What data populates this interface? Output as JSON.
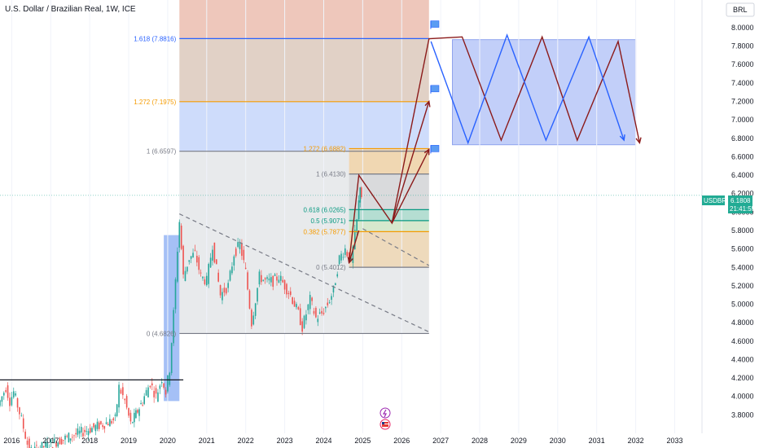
{
  "title": "U.S. Dollar / Brazilian Real, 1W, ICE",
  "currency_button": "BRL",
  "price_badge": {
    "symbol": "USDBRL",
    "price": "6.1808",
    "countdown": "21:41:55"
  },
  "event_icons": [
    "lightning-icon",
    "us-flag-icon"
  ],
  "colors": {
    "up": "#26a69a",
    "down": "#ef5350",
    "projection_red": "#8b1a1a",
    "projection_blue": "#2962ff",
    "fib_blue": "#2962ff",
    "fib_orange": "#f59b00",
    "fib_green": "#089981",
    "fib_gray": "#787b86",
    "badge": "#22ab94"
  },
  "chart_data": {
    "type": "candlestick",
    "title": "U.S. Dollar / Brazilian Real, 1W, ICE",
    "xlabel": "",
    "ylabel": "",
    "x_ticks": [
      "2016",
      "2017",
      "2018",
      "2019",
      "2020",
      "2021",
      "2022",
      "2023",
      "2024",
      "2025",
      "2026",
      "2027",
      "2028",
      "2029",
      "2030",
      "2031",
      "2032",
      "2033"
    ],
    "y_ticks": [
      "3.8000",
      "4.0000",
      "4.2000",
      "4.4000",
      "4.6000",
      "4.8000",
      "5.0000",
      "5.2000",
      "5.4000",
      "5.6000",
      "5.8000",
      "6.0000",
      "6.2000",
      "6.4000",
      "6.6000",
      "6.8000",
      "7.0000",
      "7.2000",
      "7.4000",
      "7.6000",
      "7.8000",
      "8.0000",
      "8.2000"
    ],
    "ylim": [
      3.6,
      8.3
    ],
    "xlim": [
      2015.7,
      2033.7
    ],
    "last_price": 6.1808,
    "price_path": [
      [
        2015.7,
        3.9
      ],
      [
        2015.9,
        4.1
      ],
      [
        2016.0,
        3.95
      ],
      [
        2016.1,
        4.05
      ],
      [
        2016.3,
        3.75
      ],
      [
        2016.5,
        3.4
      ],
      [
        2018.7,
        3.75
      ],
      [
        2018.8,
        4.1
      ],
      [
        2018.95,
        3.95
      ],
      [
        2019.1,
        3.7
      ],
      [
        2019.4,
        3.95
      ],
      [
        2019.6,
        4.15
      ],
      [
        2019.75,
        4.0
      ],
      [
        2019.9,
        4.2
      ],
      [
        2020.0,
        4.05
      ],
      [
        2020.1,
        4.3
      ],
      [
        2020.2,
        4.9
      ],
      [
        2020.3,
        5.6
      ],
      [
        2020.35,
        5.9
      ],
      [
        2020.45,
        5.3
      ],
      [
        2020.6,
        5.5
      ],
      [
        2020.75,
        5.55
      ],
      [
        2020.9,
        5.3
      ],
      [
        2021.05,
        5.25
      ],
      [
        2021.2,
        5.65
      ],
      [
        2021.4,
        5.1
      ],
      [
        2021.6,
        5.2
      ],
      [
        2021.75,
        5.55
      ],
      [
        2021.9,
        5.65
      ],
      [
        2022.05,
        5.35
      ],
      [
        2022.2,
        4.8
      ],
      [
        2022.4,
        5.3
      ],
      [
        2022.55,
        5.25
      ],
      [
        2022.75,
        5.25
      ],
      [
        2022.9,
        5.3
      ],
      [
        2023.05,
        5.2
      ],
      [
        2023.2,
        5.1
      ],
      [
        2023.4,
        4.9
      ],
      [
        2023.5,
        4.75
      ],
      [
        2023.7,
        5.05
      ],
      [
        2023.85,
        4.85
      ],
      [
        2024.0,
        4.9
      ],
      [
        2024.15,
        5.0
      ],
      [
        2024.3,
        5.15
      ],
      [
        2024.45,
        5.5
      ],
      [
        2024.6,
        5.6
      ],
      [
        2024.75,
        5.45
      ],
      [
        2024.9,
        5.9
      ],
      [
        2024.97,
        6.3
      ],
      [
        2025.0,
        6.18
      ]
    ],
    "trendlines": [
      {
        "name": "support",
        "points": [
          [
            2015.7,
            4.18
          ],
          [
            2020.4,
            4.18
          ]
        ]
      },
      {
        "name": "descending",
        "dashed": true,
        "points": [
          [
            2020.3,
            5.98
          ],
          [
            2026.7,
            4.7
          ]
        ]
      },
      {
        "name": "descending-2",
        "dashed": true,
        "points": [
          [
            2025.0,
            5.82
          ],
          [
            2026.7,
            5.42
          ]
        ]
      }
    ],
    "fib_large": {
      "x_range": [
        2020.3,
        2026.7
      ],
      "levels": [
        {
          "ratio": "0",
          "value": 4.6826,
          "label": "0 (4.6826)"
        },
        {
          "ratio": "1",
          "value": 6.6597,
          "label": "1 (6.6597)"
        },
        {
          "ratio": "1.272",
          "value": 7.1975,
          "label": "1.272 (7.1975)"
        },
        {
          "ratio": "1.618",
          "value": 7.8816,
          "label": "1.618 (7.8816)"
        }
      ]
    },
    "fib_small": {
      "x_range": [
        2024.65,
        2026.7
      ],
      "levels": [
        {
          "ratio": "0",
          "value": 5.4012,
          "label": "0 (5.4012)"
        },
        {
          "ratio": "0.382",
          "value": 5.7877,
          "label": "0.382 (5.7877)"
        },
        {
          "ratio": "0.5",
          "value": 5.9071,
          "label": "0.5 (5.9071)"
        },
        {
          "ratio": "0.618",
          "value": 6.0265,
          "label": "0.618 (6.0265)"
        },
        {
          "ratio": "1",
          "value": 6.413,
          "label": "1 (6.4130)"
        },
        {
          "ratio": "1.272",
          "value": 6.6882,
          "label": "1.272 (6.6882)"
        }
      ]
    },
    "projection_red": [
      [
        2024.65,
        5.45
      ],
      [
        2024.9,
        6.4
      ],
      [
        2025.75,
        5.88
      ],
      [
        2026.7,
        7.88
      ],
      [
        2027.55,
        7.9
      ],
      [
        2028.55,
        6.78
      ],
      [
        2029.6,
        7.9
      ],
      [
        2030.5,
        6.78
      ],
      [
        2031.55,
        7.85
      ],
      [
        2032.1,
        6.75
      ]
    ],
    "projection_red_extra": [
      [
        [
          2024.9,
          5.8
        ],
        [
          2024.65,
          5.45
        ]
      ],
      [
        [
          2025.75,
          5.88
        ],
        [
          2026.7,
          7.2
        ]
      ],
      [
        [
          2025.75,
          5.88
        ],
        [
          2026.7,
          6.68
        ]
      ]
    ],
    "projection_blue": [
      [
        2026.75,
        7.85
      ],
      [
        2027.7,
        6.75
      ],
      [
        2028.7,
        7.92
      ],
      [
        2029.7,
        6.78
      ],
      [
        2030.8,
        7.9
      ],
      [
        2031.7,
        6.78
      ]
    ],
    "range_box": {
      "x_range": [
        2027.3,
        2032.0
      ],
      "y_range": [
        6.73,
        7.87
      ]
    },
    "flags_at": [
      [
        2026.85,
        8.03
      ],
      [
        2026.85,
        7.33
      ],
      [
        2026.85,
        6.68
      ]
    ]
  }
}
